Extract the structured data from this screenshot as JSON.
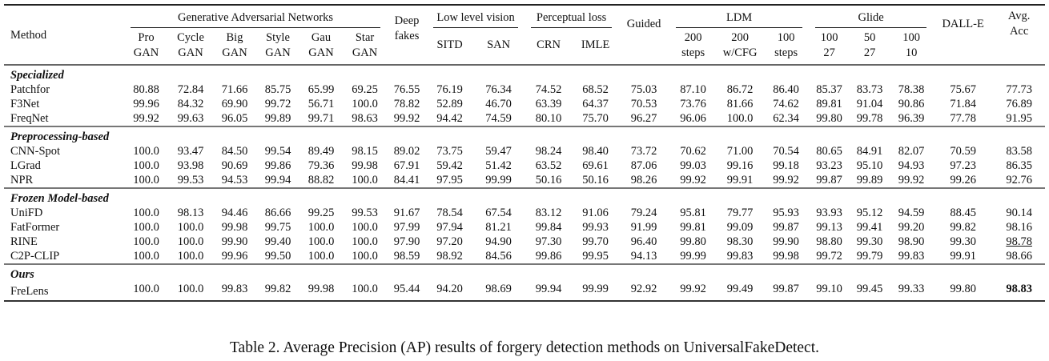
{
  "table": {
    "method_header": "Method",
    "groups": [
      {
        "label": "Generative Adversarial Networks",
        "columns": [
          [
            "Pro",
            "GAN"
          ],
          [
            "Cycle",
            "GAN"
          ],
          [
            "Big",
            "GAN"
          ],
          [
            "Style",
            "GAN"
          ],
          [
            "Gau",
            "GAN"
          ],
          [
            "Star",
            "GAN"
          ]
        ]
      },
      {
        "label": "Deep fakes",
        "single": true,
        "lines": [
          "Deep",
          "fakes"
        ]
      },
      {
        "label": "Low level vision",
        "columns": [
          [
            "SITD"
          ],
          [
            "SAN"
          ]
        ]
      },
      {
        "label": "Perceptual loss",
        "columns": [
          [
            "CRN"
          ],
          [
            "IMLE"
          ]
        ]
      },
      {
        "label": "Guided",
        "single": true,
        "lines": [
          "Guided"
        ]
      },
      {
        "label": "LDM",
        "columns": [
          [
            "200",
            "steps"
          ],
          [
            "200",
            "w/CFG"
          ],
          [
            "100",
            "steps"
          ]
        ]
      },
      {
        "label": "Glide",
        "columns": [
          [
            "100",
            "27"
          ],
          [
            "50",
            "27"
          ],
          [
            "100",
            "10"
          ]
        ]
      },
      {
        "label": "DALL-E",
        "single": true,
        "lines": [
          "DALL-E"
        ]
      },
      {
        "label": "Avg. Acc",
        "single": true,
        "lines": [
          "Avg.",
          "Acc"
        ]
      }
    ],
    "sections": [
      {
        "title": "Specialized",
        "rows": [
          {
            "method": "Patchfor",
            "values": [
              "80.88",
              "72.84",
              "71.66",
              "85.75",
              "65.99",
              "69.25",
              "76.55",
              "76.19",
              "76.34",
              "74.52",
              "68.52",
              "75.03",
              "87.10",
              "86.72",
              "86.40",
              "85.37",
              "83.73",
              "78.38",
              "75.67",
              "77.73"
            ]
          },
          {
            "method": "F3Net",
            "values": [
              "99.96",
              "84.32",
              "69.90",
              "99.72",
              "56.71",
              "100.0",
              "78.82",
              "52.89",
              "46.70",
              "63.39",
              "64.37",
              "70.53",
              "73.76",
              "81.66",
              "74.62",
              "89.81",
              "91.04",
              "90.86",
              "71.84",
              "76.89"
            ]
          },
          {
            "method": "FreqNet",
            "values": [
              "99.92",
              "99.63",
              "96.05",
              "99.89",
              "99.71",
              "98.63",
              "99.92",
              "94.42",
              "74.59",
              "80.10",
              "75.70",
              "96.27",
              "96.06",
              "100.0",
              "62.34",
              "99.80",
              "99.78",
              "96.39",
              "77.78",
              "91.95"
            ]
          }
        ]
      },
      {
        "title": "Preprocessing-based",
        "rows": [
          {
            "method": "CNN-Spot",
            "values": [
              "100.0",
              "93.47",
              "84.50",
              "99.54",
              "89.49",
              "98.15",
              "89.02",
              "73.75",
              "59.47",
              "98.24",
              "98.40",
              "73.72",
              "70.62",
              "71.00",
              "70.54",
              "80.65",
              "84.91",
              "82.07",
              "70.59",
              "83.58"
            ]
          },
          {
            "method": "LGrad",
            "values": [
              "100.0",
              "93.98",
              "90.69",
              "99.86",
              "79.36",
              "99.98",
              "67.91",
              "59.42",
              "51.42",
              "63.52",
              "69.61",
              "87.06",
              "99.03",
              "99.16",
              "99.18",
              "93.23",
              "95.10",
              "94.93",
              "97.23",
              "86.35"
            ]
          },
          {
            "method": "NPR",
            "values": [
              "100.0",
              "99.53",
              "94.53",
              "99.94",
              "88.82",
              "100.0",
              "84.41",
              "97.95",
              "99.99",
              "50.16",
              "50.16",
              "98.26",
              "99.92",
              "99.91",
              "99.92",
              "99.87",
              "99.89",
              "99.92",
              "99.26",
              "92.76"
            ]
          }
        ]
      },
      {
        "title": "Frozen Model-based",
        "rows": [
          {
            "method": "UniFD",
            "values": [
              "100.0",
              "98.13",
              "94.46",
              "86.66",
              "99.25",
              "99.53",
              "91.67",
              "78.54",
              "67.54",
              "83.12",
              "91.06",
              "79.24",
              "95.81",
              "79.77",
              "95.93",
              "93.93",
              "95.12",
              "94.59",
              "88.45",
              "90.14"
            ]
          },
          {
            "method": "FatFormer",
            "values": [
              "100.0",
              "100.0",
              "99.98",
              "99.75",
              "100.0",
              "100.0",
              "97.99",
              "97.94",
              "81.21",
              "99.84",
              "99.93",
              "91.99",
              "99.81",
              "99.09",
              "99.87",
              "99.13",
              "99.41",
              "99.20",
              "99.82",
              "98.16"
            ]
          },
          {
            "method": "RINE",
            "values": [
              "100.0",
              "100.0",
              "99.90",
              "99.40",
              "100.0",
              "100.0",
              "97.90",
              "97.20",
              "94.90",
              "97.30",
              "99.70",
              "96.40",
              "99.80",
              "98.30",
              "99.90",
              "98.80",
              "99.30",
              "98.90",
              "99.30",
              "98.78"
            ],
            "underline_avg": true
          },
          {
            "method": "C2P-CLIP",
            "values": [
              "100.0",
              "100.0",
              "99.96",
              "99.50",
              "100.0",
              "100.0",
              "98.59",
              "98.92",
              "84.56",
              "99.86",
              "99.95",
              "94.13",
              "99.99",
              "99.83",
              "99.98",
              "99.72",
              "99.79",
              "99.83",
              "99.91",
              "98.66"
            ]
          }
        ]
      },
      {
        "title": "Ours",
        "rows": [
          {
            "method": "FreLens",
            "values": [
              "100.0",
              "100.0",
              "99.83",
              "99.82",
              "99.98",
              "100.0",
              "95.44",
              "94.20",
              "98.69",
              "99.94",
              "99.99",
              "92.92",
              "99.92",
              "99.49",
              "99.87",
              "99.10",
              "99.45",
              "99.33",
              "99.80",
              "98.83"
            ],
            "bold_avg": true
          }
        ]
      }
    ]
  },
  "caption": "Table 2. Average Precision (AP) results of forgery detection methods on UniversalFakeDetect."
}
